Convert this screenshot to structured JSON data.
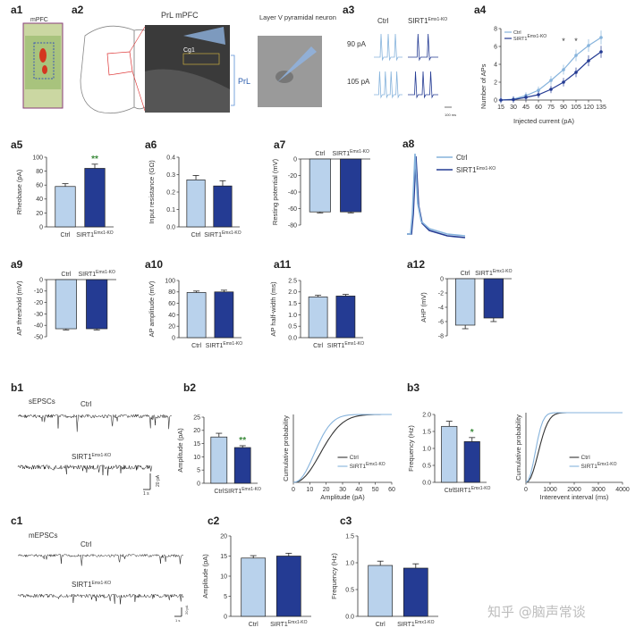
{
  "genotypes": {
    "ctrl": "Ctrl",
    "ko_base": "SIRT1",
    "ko_sup": "Emx1-KO"
  },
  "colors": {
    "ctrl": "#b9d2ec",
    "ctrl_line": "#86b3dc",
    "ko": "#243b93",
    "axis": "#333333",
    "trace": "#111111"
  },
  "watermark": "知乎 @脑声常谈",
  "a1": {
    "label": "a1",
    "title": "mPFC"
  },
  "a2": {
    "label": "a2",
    "title": "PrL mPFC",
    "cg1": "Cg1",
    "region": "PrL",
    "neuron_label": "Layer V pyramidal neuron"
  },
  "a3": {
    "label": "a3",
    "currents": [
      "90 pA",
      "105 pA"
    ],
    "scale": "100 ms"
  },
  "a4": {
    "chart_data": {
      "type": "line",
      "xlabel": "Injected current (pA)",
      "ylabel": "Number of APs",
      "x": [
        15,
        30,
        45,
        60,
        75,
        90,
        105,
        120,
        135
      ],
      "ylim": [
        0,
        8
      ],
      "yticks": [
        0,
        2,
        4,
        6,
        8
      ],
      "series": [
        {
          "name": "Ctrl",
          "values": [
            0,
            0.1,
            0.5,
            1.1,
            2.2,
            3.4,
            5.0,
            6.1,
            7.0
          ]
        },
        {
          "name": "SIRT1Emx1-KO",
          "values": [
            0,
            0.05,
            0.3,
            0.6,
            1.2,
            2.0,
            3.1,
            4.4,
            5.4
          ]
        }
      ],
      "sig": [
        {
          "x": 90,
          "text": "*"
        },
        {
          "x": 105,
          "text": "*"
        }
      ]
    }
  },
  "a5": {
    "label": "a5",
    "chart_data": {
      "type": "bar",
      "ylabel": "Rheobase (pA)",
      "ylim": [
        0,
        100
      ],
      "yticks": [
        0,
        20,
        40,
        60,
        80,
        100
      ],
      "values": [
        58,
        84
      ],
      "errors": [
        4,
        6
      ],
      "sig": "**"
    }
  },
  "a6": {
    "label": "a6",
    "chart_data": {
      "type": "bar",
      "ylabel": "Input resistance (GΩ)",
      "ylim": [
        0,
        0.4
      ],
      "yticks": [
        "0.0",
        "0.1",
        "0.2",
        "0.3",
        "0.4"
      ],
      "values": [
        0.27,
        0.235
      ],
      "errors": [
        0.025,
        0.03
      ]
    }
  },
  "a7": {
    "label": "a7",
    "chart_data": {
      "type": "bar",
      "ylabel": "Resting potential (mV)",
      "ylim": [
        -80,
        0
      ],
      "yticks": [
        0,
        -20,
        -40,
        -60,
        -80
      ],
      "values": [
        -64,
        -64
      ],
      "errors": [
        1.2,
        1.2
      ]
    }
  },
  "a8": {
    "label": "a8"
  },
  "a9": {
    "label": "a9",
    "chart_data": {
      "type": "bar",
      "ylabel": "AP threshold (mV)",
      "ylim": [
        -50,
        0
      ],
      "yticks": [
        0,
        -10,
        -20,
        -30,
        -40,
        -50
      ],
      "values": [
        -43,
        -43
      ],
      "errors": [
        1,
        1
      ]
    }
  },
  "a10": {
    "label": "a10",
    "chart_data": {
      "type": "bar",
      "ylabel": "AP amplitude (mV)",
      "ylim": [
        0,
        100
      ],
      "yticks": [
        0,
        20,
        40,
        60,
        80,
        100
      ],
      "values": [
        79,
        80
      ],
      "errors": [
        2.5,
        3
      ]
    }
  },
  "a11": {
    "label": "a11",
    "chart_data": {
      "type": "bar",
      "ylabel": "AP half-width (ms)",
      "ylim": [
        0,
        2.5
      ],
      "yticks": [
        "0.0",
        "0.5",
        "1.0",
        "1.5",
        "2.0",
        "2.5"
      ],
      "values": [
        1.78,
        1.82
      ],
      "errors": [
        0.07,
        0.07
      ]
    }
  },
  "a12": {
    "label": "a12",
    "chart_data": {
      "type": "bar",
      "ylabel": "AHP (mV)",
      "ylim": [
        -8,
        0
      ],
      "yticks": [
        0,
        -2,
        -4,
        -6,
        -8
      ],
      "values": [
        -6.5,
        -5.5
      ],
      "errors": [
        0.5,
        0.5
      ]
    }
  },
  "b1": {
    "label": "b1",
    "title": "sEPSCs",
    "scale_y": "20 pA",
    "scale_x": "1 s"
  },
  "b2": {
    "label": "b2",
    "chart_data": {
      "type": "bar",
      "ylabel": "Amplitude (pA)",
      "ylim": [
        0,
        25
      ],
      "yticks": [
        0,
        5,
        10,
        15,
        20,
        25
      ],
      "values": [
        17.5,
        13.5
      ],
      "errors": [
        1.4,
        0.7
      ],
      "sig": "**"
    },
    "cdf": {
      "type": "line",
      "xlabel": "Amplitude (pA)",
      "ylabel": "Cumulative probability",
      "xlim": [
        0,
        60
      ],
      "xticks": [
        0,
        10,
        20,
        30,
        40,
        50,
        60
      ]
    }
  },
  "b3": {
    "label": "b3",
    "chart_data": {
      "type": "bar",
      "ylabel": "Frequency (Hz)",
      "ylim": [
        0,
        2.0
      ],
      "yticks": [
        "0.0",
        "0.5",
        "1.0",
        "1.5",
        "2.0"
      ],
      "values": [
        1.65,
        1.2
      ],
      "errors": [
        0.15,
        0.12
      ],
      "sig": "*"
    },
    "cdf": {
      "type": "line",
      "xlabel": "Interevent interval (ms)",
      "ylabel": "Cumulative probability",
      "xlim": [
        0,
        4000
      ],
      "xticks": [
        0,
        1000,
        2000,
        3000,
        4000
      ]
    }
  },
  "c1": {
    "label": "c1",
    "title": "mEPSCs",
    "scale_y": "20 pA",
    "scale_x": "1 s"
  },
  "c2": {
    "label": "c2",
    "chart_data": {
      "type": "bar",
      "ylabel": "Amplitude (pA)",
      "ylim": [
        0,
        20
      ],
      "yticks": [
        0,
        5,
        10,
        15,
        20
      ],
      "values": [
        14.5,
        15
      ],
      "errors": [
        0.6,
        0.7
      ]
    }
  },
  "c3": {
    "label": "c3",
    "chart_data": {
      "type": "bar",
      "ylabel": "Frequency (Hz)",
      "ylim": [
        0,
        1.5
      ],
      "yticks": [
        "0.0",
        "0.5",
        "1.0",
        "1.5"
      ],
      "values": [
        0.95,
        0.9
      ],
      "errors": [
        0.08,
        0.08
      ]
    }
  }
}
